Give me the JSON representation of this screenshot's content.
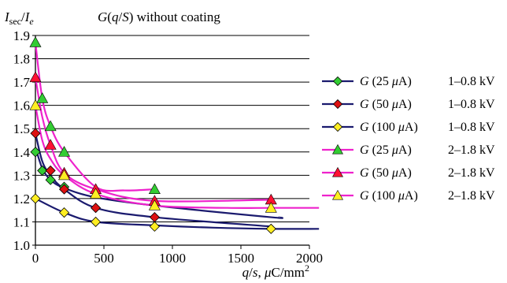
{
  "chart_data": {
    "type": "line",
    "title": "G(q/S) without coating",
    "title_parts": {
      "func": "G",
      "arg_q": "q",
      "arg_s": "S",
      "rest": " without coating"
    },
    "ylabel_parts": {
      "i1": "I",
      "sub1": "sec",
      "slash": "/",
      "i2": "I",
      "sub2": "e"
    },
    "xlabel_parts": {
      "q": "q",
      "slash": "/",
      "s": "s",
      "comma": ", ",
      "mu": "μ",
      "unit": "C/mm",
      "sup": "2"
    },
    "xlim": [
      0,
      2000
    ],
    "ylim": [
      1.0,
      1.9
    ],
    "xticks": [
      0,
      500,
      1000,
      1500,
      2000
    ],
    "xtick_labels": [
      "0",
      "500",
      "1000",
      "1500",
      "2000"
    ],
    "yticks": [
      1.0,
      1.1,
      1.2,
      1.3,
      1.4,
      1.5,
      1.6,
      1.7,
      1.8,
      1.9
    ],
    "ytick_labels": [
      "1.0",
      "1.1",
      "1.2",
      "1.3",
      "1.4",
      "1.5",
      "1.6",
      "1.7",
      "1.8",
      "1.9"
    ],
    "grid": "horizontal",
    "legend_position": "right",
    "series": [
      {
        "name": "G (25 μA) 1–0.8 kV",
        "legend": {
          "g": "G",
          "cur": " (25 ",
          "mu": "μ",
          "a": "A)",
          "volt": "1–0.8 kV"
        },
        "line_color": "#1a1a6e",
        "marker": "diamond",
        "marker_color": "#33cc33",
        "points": [
          [
            0,
            1.4
          ],
          [
            50,
            1.32
          ],
          [
            110,
            1.28
          ],
          [
            210,
            1.25
          ]
        ],
        "trend": [
          [
            0,
            1.42
          ],
          [
            50,
            1.33
          ],
          [
            110,
            1.28
          ],
          [
            210,
            1.245
          ],
          [
            440,
            1.205
          ],
          [
            870,
            1.17
          ],
          [
            1720,
            1.12
          ],
          [
            1780,
            1.12
          ]
        ]
      },
      {
        "name": "G (50 μA) 1–0.8 kV",
        "legend": {
          "g": "G",
          "cur": " (50 ",
          "mu": "μ",
          "a": "A)",
          "volt": "1–0.8 kV"
        },
        "line_color": "#1a1a6e",
        "marker": "diamond",
        "marker_color": "#dd1111",
        "points": [
          [
            0,
            1.48
          ],
          [
            110,
            1.32
          ],
          [
            210,
            1.24
          ],
          [
            440,
            1.16
          ],
          [
            870,
            1.12
          ]
        ],
        "trend": [
          [
            0,
            1.48
          ],
          [
            50,
            1.36
          ],
          [
            110,
            1.3
          ],
          [
            210,
            1.24
          ],
          [
            440,
            1.16
          ],
          [
            870,
            1.12
          ],
          [
            1720,
            1.08
          ]
        ]
      },
      {
        "name": "G (100 μA) 1–0.8 kV",
        "legend": {
          "g": "G",
          "cur": " (100 ",
          "mu": "μ",
          "a": "A)",
          "volt": "1–0.8 kV"
        },
        "line_color": "#1a1a6e",
        "marker": "diamond",
        "marker_color": "#ffee22",
        "points": [
          [
            0,
            1.2
          ],
          [
            210,
            1.14
          ],
          [
            440,
            1.1
          ],
          [
            870,
            1.08
          ],
          [
            1720,
            1.07
          ]
        ],
        "trend": [
          [
            0,
            1.2
          ],
          [
            210,
            1.14
          ],
          [
            440,
            1.1
          ],
          [
            870,
            1.085
          ],
          [
            1300,
            1.075
          ],
          [
            1720,
            1.07
          ],
          [
            2070,
            1.07
          ]
        ]
      },
      {
        "name": "G (25 μA) 2–1.8 kV",
        "legend": {
          "g": "G",
          "cur": " (25 ",
          "mu": "μ",
          "a": "A)",
          "volt": "2–1.8 kV"
        },
        "line_color": "#ee22cc",
        "marker": "triangle",
        "marker_color": "#33cc33",
        "points": [
          [
            0,
            1.87
          ],
          [
            50,
            1.63
          ],
          [
            110,
            1.51
          ],
          [
            210,
            1.4
          ],
          [
            870,
            1.24
          ]
        ],
        "trend": [
          [
            0,
            1.87
          ],
          [
            50,
            1.63
          ],
          [
            110,
            1.51
          ],
          [
            210,
            1.4
          ],
          [
            440,
            1.25
          ],
          [
            650,
            1.235
          ],
          [
            870,
            1.24
          ]
        ]
      },
      {
        "name": "G (50 μA) 2–1.8 kV",
        "legend": {
          "g": "G",
          "cur": " (50 ",
          "mu": "μ",
          "a": "A)",
          "volt": "2–1.8 kV"
        },
        "line_color": "#ee22cc",
        "marker": "triangle",
        "marker_color": "#ff1133",
        "points": [
          [
            0,
            1.72
          ],
          [
            110,
            1.43
          ],
          [
            210,
            1.31
          ],
          [
            440,
            1.24
          ],
          [
            870,
            1.19
          ],
          [
            1720,
            1.195
          ]
        ],
        "trend": [
          [
            0,
            1.72
          ],
          [
            50,
            1.55
          ],
          [
            110,
            1.43
          ],
          [
            210,
            1.31
          ],
          [
            440,
            1.24
          ],
          [
            870,
            1.19
          ],
          [
            1720,
            1.195
          ]
        ]
      },
      {
        "name": "G (100 μA) 2–1.8 kV",
        "legend": {
          "g": "G",
          "cur": " (100 ",
          "mu": "μ",
          "a": "A)",
          "volt": "2–1.8 kV"
        },
        "line_color": "#ee22cc",
        "marker": "triangle",
        "marker_color": "#ffee22",
        "points": [
          [
            0,
            1.6
          ],
          [
            210,
            1.3
          ],
          [
            440,
            1.22
          ],
          [
            870,
            1.17
          ],
          [
            1720,
            1.16
          ]
        ],
        "trend": [
          [
            0,
            1.6
          ],
          [
            50,
            1.45
          ],
          [
            110,
            1.37
          ],
          [
            210,
            1.3
          ],
          [
            440,
            1.22
          ],
          [
            870,
            1.17
          ],
          [
            1400,
            1.16
          ],
          [
            1720,
            1.16
          ],
          [
            2070,
            1.16
          ]
        ]
      }
    ]
  }
}
